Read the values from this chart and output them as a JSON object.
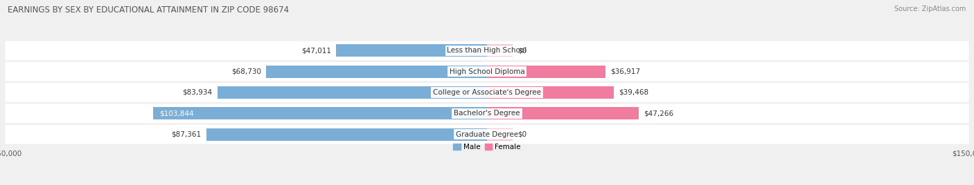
{
  "title": "EARNINGS BY SEX BY EDUCATIONAL ATTAINMENT IN ZIP CODE 98674",
  "source": "Source: ZipAtlas.com",
  "categories": [
    "Less than High School",
    "High School Diploma",
    "College or Associate's Degree",
    "Bachelor's Degree",
    "Graduate Degree"
  ],
  "male_values": [
    47011,
    68730,
    83934,
    103844,
    87361
  ],
  "female_values": [
    0,
    36917,
    39468,
    47266,
    0
  ],
  "male_color": "#7aaed6",
  "female_color": "#f07ca0",
  "female_zero_color": "#f9c4d2",
  "male_label": "Male",
  "female_label": "Female",
  "xlim": 150000,
  "fig_bg_color": "#f0f0f0",
  "row_bg_color": "#e8e8e8",
  "title_fontsize": 8.5,
  "source_fontsize": 7,
  "label_fontsize": 7.5,
  "tick_fontsize": 7.5,
  "bar_height": 0.6,
  "category_label_fontsize": 7.5
}
